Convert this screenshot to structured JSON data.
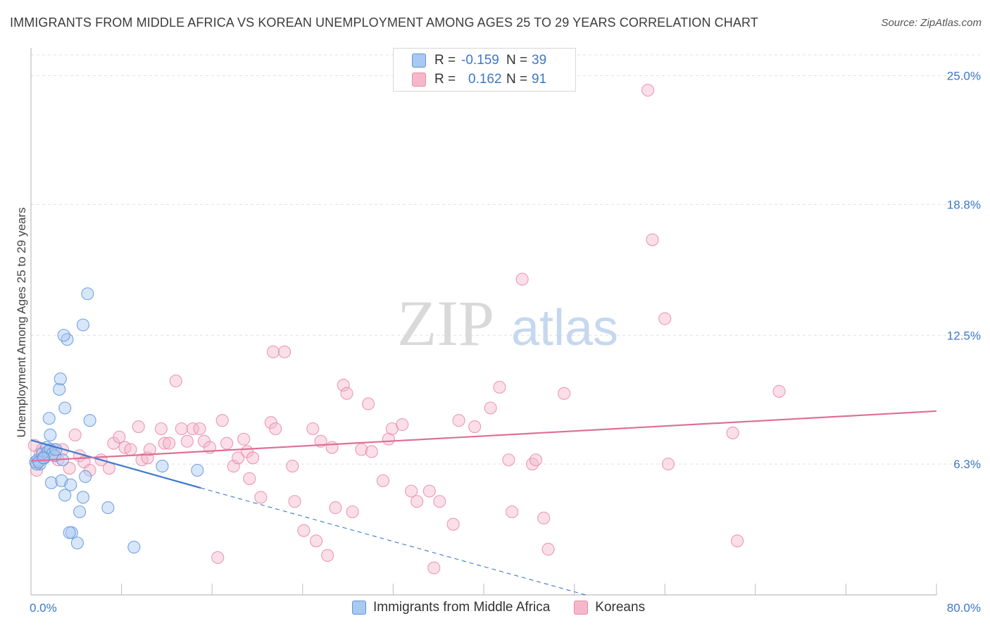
{
  "title": "IMMIGRANTS FROM MIDDLE AFRICA VS KOREAN UNEMPLOYMENT AMONG AGES 25 TO 29 YEARS CORRELATION CHART",
  "source": "Source: ZipAtlas.com",
  "watermark": {
    "part1": "ZIP",
    "part2": "atlas"
  },
  "legend": {
    "rows": [
      {
        "r_label": "R =",
        "r_value": "-0.159",
        "n_label": "N =",
        "n_value": "39"
      },
      {
        "r_label": "R =",
        "r_value": "0.162",
        "n_label": "N =",
        "n_value": "91"
      }
    ]
  },
  "bottom_legend": [
    "Immigrants from Middle Africa",
    "Koreans"
  ],
  "colors": {
    "blue_fill": "#a9c8f2",
    "blue_stroke": "#5f95d9",
    "blue_line": "#3b78d0",
    "pink_fill": "#f5b8cb",
    "pink_stroke": "#e98aa8",
    "pink_line": "#e06e98",
    "axis_text": "#3b78c7",
    "grid": "#e0e0e0"
  },
  "chart_data": {
    "type": "scatter",
    "title": "IMMIGRANTS FROM MIDDLE AFRICA VS KOREAN UNEMPLOYMENT AMONG AGES 25 TO 29 YEARS CORRELATION CHART",
    "xlabel": "",
    "ylabel": "Unemployment Among Ages 25 to 29 years",
    "xlim": [
      0,
      80
    ],
    "ylim": [
      0,
      26
    ],
    "x_tick_labels": [
      "0.0%",
      "80.0%"
    ],
    "y_ticks": [
      6.3,
      12.5,
      18.8,
      25.0
    ],
    "y_tick_labels": [
      "6.3%",
      "12.5%",
      "18.8%",
      "25.0%"
    ],
    "grid": true,
    "series": [
      {
        "name": "Immigrants from Middle Africa",
        "color": "blue",
        "points": [
          [
            0.4,
            6.4
          ],
          [
            0.6,
            6.5
          ],
          [
            0.8,
            6.3
          ],
          [
            1.0,
            6.8
          ],
          [
            1.2,
            6.6
          ],
          [
            1.4,
            7.1
          ],
          [
            1.5,
            6.9
          ],
          [
            1.7,
            7.0
          ],
          [
            1.9,
            6.8
          ],
          [
            2.1,
            6.7
          ],
          [
            0.5,
            6.3
          ],
          [
            0.7,
            6.4
          ],
          [
            1.1,
            6.6
          ],
          [
            1.6,
            8.5
          ],
          [
            1.8,
            5.4
          ],
          [
            1.7,
            7.7
          ],
          [
            2.2,
            7.0
          ],
          [
            2.5,
            9.9
          ],
          [
            2.6,
            10.4
          ],
          [
            3.0,
            9.0
          ],
          [
            3.2,
            12.3
          ],
          [
            2.9,
            12.5
          ],
          [
            2.8,
            6.5
          ],
          [
            2.7,
            5.5
          ],
          [
            3.0,
            4.8
          ],
          [
            3.5,
            5.3
          ],
          [
            3.6,
            3.0
          ],
          [
            3.4,
            3.0
          ],
          [
            4.1,
            2.5
          ],
          [
            4.3,
            4.0
          ],
          [
            4.6,
            4.7
          ],
          [
            4.8,
            5.7
          ],
          [
            5.2,
            8.4
          ],
          [
            4.6,
            13.0
          ],
          [
            5.0,
            14.5
          ],
          [
            6.8,
            4.2
          ],
          [
            9.1,
            2.3
          ],
          [
            11.6,
            6.2
          ],
          [
            14.7,
            6.0
          ]
        ]
      },
      {
        "name": "Koreans",
        "color": "pink",
        "points": [
          [
            0.3,
            7.2
          ],
          [
            0.5,
            6.0
          ],
          [
            0.8,
            6.8
          ],
          [
            1.0,
            7.0
          ],
          [
            1.2,
            6.7
          ],
          [
            2.0,
            7.0
          ],
          [
            2.4,
            6.5
          ],
          [
            2.8,
            7.0
          ],
          [
            3.4,
            6.1
          ],
          [
            3.9,
            7.7
          ],
          [
            4.3,
            6.7
          ],
          [
            4.7,
            6.4
          ],
          [
            5.2,
            6.0
          ],
          [
            6.2,
            6.5
          ],
          [
            6.9,
            6.1
          ],
          [
            7.3,
            7.3
          ],
          [
            7.8,
            7.6
          ],
          [
            8.3,
            7.1
          ],
          [
            8.8,
            7.0
          ],
          [
            9.5,
            8.1
          ],
          [
            9.8,
            6.5
          ],
          [
            10.3,
            6.6
          ],
          [
            10.5,
            7.0
          ],
          [
            11.5,
            8.0
          ],
          [
            11.8,
            7.3
          ],
          [
            12.2,
            7.3
          ],
          [
            12.8,
            10.3
          ],
          [
            13.3,
            8.0
          ],
          [
            13.8,
            7.4
          ],
          [
            14.3,
            8.0
          ],
          [
            14.9,
            8.0
          ],
          [
            15.3,
            7.4
          ],
          [
            15.8,
            7.1
          ],
          [
            16.5,
            1.8
          ],
          [
            16.9,
            8.4
          ],
          [
            17.3,
            7.3
          ],
          [
            17.9,
            6.2
          ],
          [
            18.3,
            6.6
          ],
          [
            18.8,
            7.5
          ],
          [
            19.1,
            6.9
          ],
          [
            19.3,
            5.6
          ],
          [
            19.6,
            6.6
          ],
          [
            20.3,
            4.7
          ],
          [
            21.2,
            8.3
          ],
          [
            21.4,
            11.7
          ],
          [
            21.6,
            8.0
          ],
          [
            22.4,
            11.7
          ],
          [
            23.1,
            6.2
          ],
          [
            23.3,
            4.5
          ],
          [
            24.1,
            3.1
          ],
          [
            24.9,
            8.0
          ],
          [
            25.2,
            2.6
          ],
          [
            25.6,
            7.4
          ],
          [
            26.2,
            1.9
          ],
          [
            26.6,
            7.1
          ],
          [
            26.9,
            4.2
          ],
          [
            27.6,
            10.1
          ],
          [
            27.9,
            9.7
          ],
          [
            28.4,
            4.0
          ],
          [
            29.2,
            7.0
          ],
          [
            29.8,
            9.2
          ],
          [
            30.1,
            6.9
          ],
          [
            31.1,
            5.5
          ],
          [
            31.6,
            7.5
          ],
          [
            31.9,
            8.0
          ],
          [
            32.8,
            8.2
          ],
          [
            33.6,
            5.0
          ],
          [
            34.1,
            4.5
          ],
          [
            35.2,
            5.0
          ],
          [
            35.6,
            1.3
          ],
          [
            36.1,
            4.5
          ],
          [
            37.3,
            3.4
          ],
          [
            37.8,
            8.4
          ],
          [
            39.2,
            8.1
          ],
          [
            40.6,
            9.0
          ],
          [
            41.4,
            10.0
          ],
          [
            42.2,
            6.5
          ],
          [
            42.5,
            4.0
          ],
          [
            43.4,
            15.2
          ],
          [
            44.3,
            6.3
          ],
          [
            44.6,
            6.5
          ],
          [
            45.3,
            3.7
          ],
          [
            45.7,
            2.2
          ],
          [
            47.1,
            9.7
          ],
          [
            54.5,
            24.3
          ],
          [
            54.9,
            17.1
          ],
          [
            56.0,
            13.3
          ],
          [
            56.3,
            6.3
          ],
          [
            62.0,
            7.8
          ],
          [
            62.4,
            2.6
          ],
          [
            66.1,
            9.8
          ]
        ]
      }
    ],
    "trend_lines": [
      {
        "series": "Immigrants from Middle Africa",
        "x_start": 0,
        "y_start": 7.45,
        "x_solid_end": 15.0,
        "y_solid_end": 5.15,
        "x_dash_end": 49.0,
        "y_dash_end": 0.0
      },
      {
        "series": "Koreans",
        "x_start": 0,
        "y_start": 6.45,
        "x_end": 80,
        "y_end": 8.85
      }
    ]
  }
}
